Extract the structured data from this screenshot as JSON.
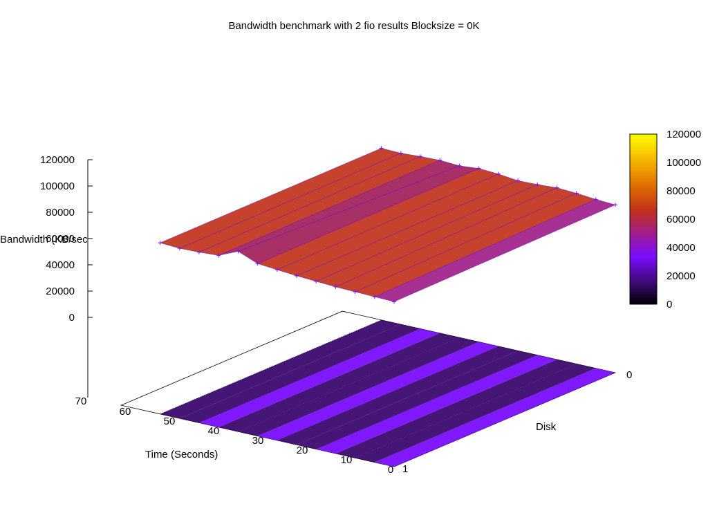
{
  "chart_data": {
    "type": "surface",
    "title": "Bandwidth benchmark with 2 fio results  Blocksize = 0K",
    "xlabel": "Time (Seconds)",
    "ylabel": "Disk",
    "zlabel": "Bandwidth (KB/sec)",
    "x_ticks": [
      "0",
      "10",
      "20",
      "30",
      "40",
      "50",
      "60",
      "70"
    ],
    "y_ticks": [
      "0",
      "1"
    ],
    "z_ticks": [
      "0",
      "20000",
      "40000",
      "60000",
      "80000",
      "100000",
      "120000"
    ],
    "colorbar_ticks": [
      "0",
      "20000",
      "40000",
      "60000",
      "80000",
      "100000",
      "120000"
    ],
    "xlim": [
      0,
      70
    ],
    "ylim": [
      0,
      1
    ],
    "zlim": [
      0,
      120000
    ],
    "palette": [
      "#000000",
      "#3b0a6e",
      "#7a0dff",
      "#a21f8a",
      "#c2321b",
      "#e07000",
      "#f5b800",
      "#ffff00"
    ],
    "series": [
      {
        "name": "0",
        "x": [
          0,
          5,
          10,
          15,
          20,
          25,
          30,
          35,
          40,
          45,
          50,
          55,
          60
        ],
        "y": [
          40000,
          42000,
          45000,
          47000,
          45000,
          44000,
          48000,
          50000,
          47000,
          49000,
          48000,
          46000,
          47000
        ]
      },
      {
        "name": "1",
        "x": [
          0,
          5,
          10,
          15,
          20,
          25,
          30,
          35,
          40,
          45,
          50,
          55,
          60
        ],
        "y": [
          35000,
          36000,
          37000,
          38000,
          40000,
          42000,
          45000,
          48000,
          62000,
          47000,
          45000,
          44000,
          46000
        ]
      }
    ]
  }
}
